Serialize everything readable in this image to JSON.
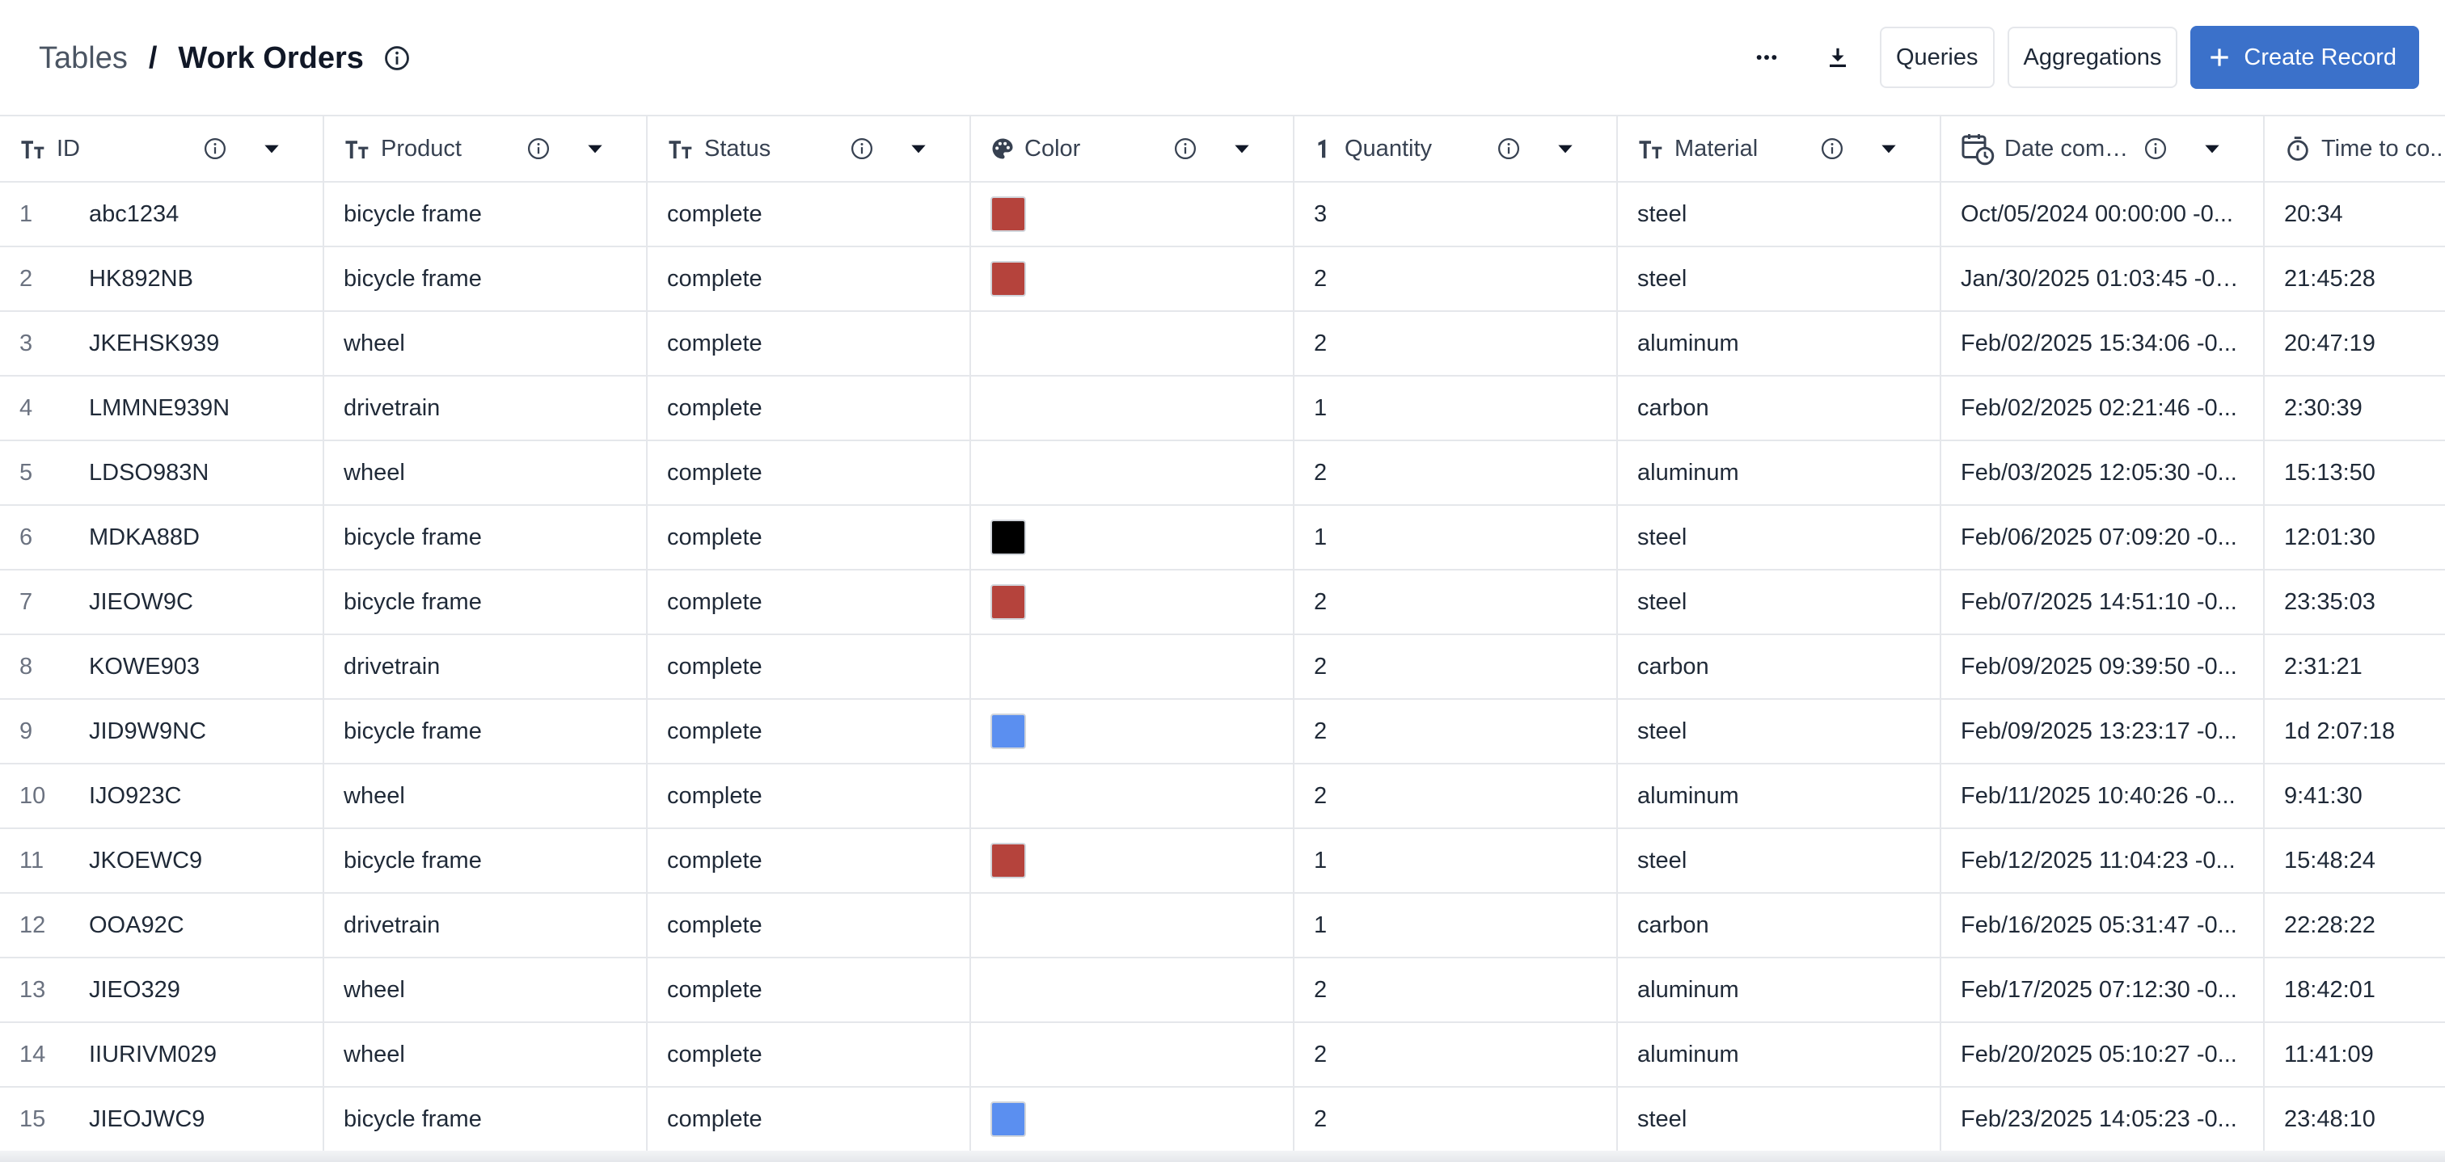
{
  "breadcrumb": {
    "root": "Tables",
    "separator": "/",
    "current": "Work Orders"
  },
  "toolbar": {
    "more_icon": "more-horizontal-icon",
    "download_icon": "download-icon",
    "queries_label": "Queries",
    "aggregations_label": "Aggregations",
    "create_label": "Create Record"
  },
  "colors": {
    "primary": "#3b71ca",
    "red": "#b5433c",
    "black": "#000000",
    "blue": "#5b8ff0"
  },
  "columns": [
    {
      "label": "ID",
      "icon": "text-type-icon"
    },
    {
      "label": "Product",
      "icon": "text-type-icon"
    },
    {
      "label": "Status",
      "icon": "text-type-icon"
    },
    {
      "label": "Color",
      "icon": "palette-icon"
    },
    {
      "label": "Quantity",
      "icon": "number-type-icon"
    },
    {
      "label": "Material",
      "icon": "text-type-icon"
    },
    {
      "label": "Date comp...",
      "icon": "calendar-clock-icon"
    },
    {
      "label": "Time to co...",
      "icon": "timer-icon"
    }
  ],
  "rows": [
    {
      "n": "1",
      "id": "abc1234",
      "product": "bicycle frame",
      "status": "complete",
      "color": "#b5433c",
      "qty": "3",
      "material": "steel",
      "date": "Oct/05/2024 00:00:00 -0...",
      "time": "20:34"
    },
    {
      "n": "2",
      "id": "HK892NB",
      "product": "bicycle frame",
      "status": "complete",
      "color": "#b5433c",
      "qty": "2",
      "material": "steel",
      "date": "Jan/30/2025 01:03:45 -05...",
      "time": "21:45:28"
    },
    {
      "n": "3",
      "id": "JKEHSK939",
      "product": "wheel",
      "status": "complete",
      "color": "",
      "qty": "2",
      "material": "aluminum",
      "date": "Feb/02/2025 15:34:06 -0...",
      "time": "20:47:19"
    },
    {
      "n": "4",
      "id": "LMMNE939N",
      "product": "drivetrain",
      "status": "complete",
      "color": "",
      "qty": "1",
      "material": "carbon",
      "date": "Feb/02/2025 02:21:46 -0...",
      "time": "2:30:39"
    },
    {
      "n": "5",
      "id": "LDSO983N",
      "product": "wheel",
      "status": "complete",
      "color": "",
      "qty": "2",
      "material": "aluminum",
      "date": "Feb/03/2025 12:05:30 -0...",
      "time": "15:13:50"
    },
    {
      "n": "6",
      "id": "MDKA88D",
      "product": "bicycle frame",
      "status": "complete",
      "color": "#000000",
      "qty": "1",
      "material": "steel",
      "date": "Feb/06/2025 07:09:20 -0...",
      "time": "12:01:30"
    },
    {
      "n": "7",
      "id": "JIEOW9C",
      "product": "bicycle frame",
      "status": "complete",
      "color": "#b5433c",
      "qty": "2",
      "material": "steel",
      "date": "Feb/07/2025 14:51:10 -0...",
      "time": "23:35:03"
    },
    {
      "n": "8",
      "id": "KOWE903",
      "product": "drivetrain",
      "status": "complete",
      "color": "",
      "qty": "2",
      "material": "carbon",
      "date": "Feb/09/2025 09:39:50 -0...",
      "time": "2:31:21"
    },
    {
      "n": "9",
      "id": "JID9W9NC",
      "product": "bicycle frame",
      "status": "complete",
      "color": "#5b8ff0",
      "qty": "2",
      "material": "steel",
      "date": "Feb/09/2025 13:23:17 -0...",
      "time": "1d 2:07:18"
    },
    {
      "n": "10",
      "id": "IJO923C",
      "product": "wheel",
      "status": "complete",
      "color": "",
      "qty": "2",
      "material": "aluminum",
      "date": "Feb/11/2025 10:40:26 -0...",
      "time": "9:41:30"
    },
    {
      "n": "11",
      "id": "JKOEWC9",
      "product": "bicycle frame",
      "status": "complete",
      "color": "#b5433c",
      "qty": "1",
      "material": "steel",
      "date": "Feb/12/2025 11:04:23 -0...",
      "time": "15:48:24"
    },
    {
      "n": "12",
      "id": "OOA92C",
      "product": "drivetrain",
      "status": "complete",
      "color": "",
      "qty": "1",
      "material": "carbon",
      "date": "Feb/16/2025 05:31:47 -0...",
      "time": "22:28:22"
    },
    {
      "n": "13",
      "id": "JIEO329",
      "product": "wheel",
      "status": "complete",
      "color": "",
      "qty": "2",
      "material": "aluminum",
      "date": "Feb/17/2025 07:12:30 -0...",
      "time": "18:42:01"
    },
    {
      "n": "14",
      "id": "IIURIVM029",
      "product": "wheel",
      "status": "complete",
      "color": "",
      "qty": "2",
      "material": "aluminum",
      "date": "Feb/20/2025 05:10:27 -0...",
      "time": "11:41:09"
    },
    {
      "n": "15",
      "id": "JIEOJWC9",
      "product": "bicycle frame",
      "status": "complete",
      "color": "#5b8ff0",
      "qty": "2",
      "material": "steel",
      "date": "Feb/23/2025 14:05:23 -0...",
      "time": "23:48:10"
    }
  ]
}
